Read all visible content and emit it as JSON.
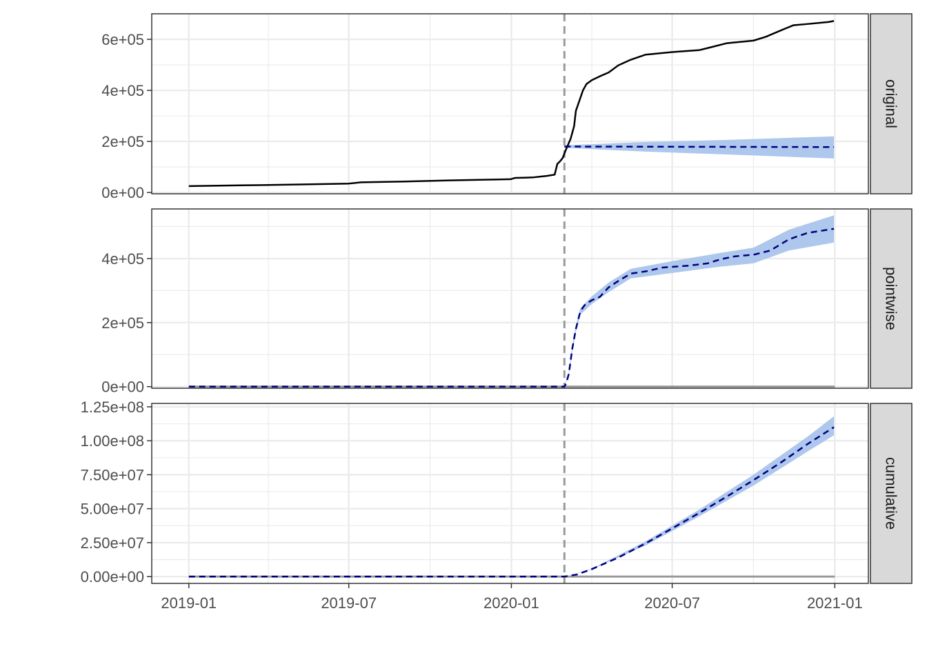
{
  "chart_data": {
    "type": "line",
    "title": "",
    "xlabel": "",
    "ylabel": "",
    "intervention_date": "2020-03-01",
    "x_range": [
      "2018-11-20",
      "2021-02-08"
    ],
    "x_ticks": [
      {
        "date": "2019-01-01",
        "label": "2019-01"
      },
      {
        "date": "2019-07-01",
        "label": "2019-07"
      },
      {
        "date": "2020-01-01",
        "label": "2020-01"
      },
      {
        "date": "2020-07-01",
        "label": "2020-07"
      },
      {
        "date": "2021-01-01",
        "label": "2021-01"
      }
    ],
    "x_minor_ticks": [
      "2019-04-01",
      "2019-10-01",
      "2020-04-01",
      "2020-10-01"
    ],
    "grid": true,
    "colors": {
      "observed": "#000000",
      "prediction": "#000080",
      "band": "#aec7ec",
      "vline": "#999999",
      "zero_line": "#999999",
      "strip_bg": "#d9d9d9",
      "grid": "#ebebeb"
    },
    "panels": [
      {
        "strip": "original",
        "ylim": [
          -5000,
          700000
        ],
        "y_ticks": [
          {
            "v": 0,
            "label": "0e+00"
          },
          {
            "v": 200000,
            "label": "2e+05"
          },
          {
            "v": 400000,
            "label": "4e+05"
          },
          {
            "v": 600000,
            "label": "6e+05"
          }
        ],
        "y_minor": [
          100000,
          300000,
          500000
        ],
        "zero_line": false,
        "series": [
          {
            "role": "observed",
            "points": [
              [
                "2019-01-01",
                25000
              ],
              [
                "2019-03-01",
                28000
              ],
              [
                "2019-05-01",
                31000
              ],
              [
                "2019-07-01",
                35000
              ],
              [
                "2019-07-15",
                40000
              ],
              [
                "2019-09-01",
                43000
              ],
              [
                "2019-11-01",
                48000
              ],
              [
                "2019-12-31",
                52000
              ],
              [
                "2020-01-05",
                57000
              ],
              [
                "2020-01-25",
                59000
              ],
              [
                "2020-02-10",
                65000
              ],
              [
                "2020-02-19",
                70000
              ],
              [
                "2020-02-22",
                112000
              ],
              [
                "2020-02-25",
                122000
              ],
              [
                "2020-02-28",
                135000
              ],
              [
                "2020-03-03",
                170000
              ],
              [
                "2020-03-08",
                210000
              ],
              [
                "2020-03-12",
                260000
              ],
              [
                "2020-03-14",
                320000
              ],
              [
                "2020-03-18",
                360000
              ],
              [
                "2020-03-22",
                400000
              ],
              [
                "2020-03-26",
                425000
              ],
              [
                "2020-04-01",
                440000
              ],
              [
                "2020-04-10",
                455000
              ],
              [
                "2020-04-20",
                470000
              ],
              [
                "2020-05-01",
                498000
              ],
              [
                "2020-05-15",
                520000
              ],
              [
                "2020-06-01",
                540000
              ],
              [
                "2020-07-01",
                550000
              ],
              [
                "2020-08-01",
                558000
              ],
              [
                "2020-08-15",
                570000
              ],
              [
                "2020-09-01",
                585000
              ],
              [
                "2020-10-01",
                595000
              ],
              [
                "2020-10-15",
                610000
              ],
              [
                "2020-11-01",
                635000
              ],
              [
                "2020-11-15",
                655000
              ],
              [
                "2020-12-01",
                660000
              ],
              [
                "2020-12-25",
                668000
              ],
              [
                "2020-12-31",
                672000
              ]
            ]
          },
          {
            "role": "prediction",
            "points": [
              [
                "2020-03-01",
                180000
              ],
              [
                "2020-12-31",
                178000
              ]
            ]
          }
        ],
        "band": {
          "upper": [
            [
              "2020-03-01",
              185000
            ],
            [
              "2020-06-01",
              198000
            ],
            [
              "2020-09-01",
              206000
            ],
            [
              "2020-12-31",
              220000
            ]
          ],
          "lower": [
            [
              "2020-03-01",
              175000
            ],
            [
              "2020-06-01",
              160000
            ],
            [
              "2020-09-01",
              149000
            ],
            [
              "2020-12-31",
              133000
            ]
          ]
        }
      },
      {
        "strip": "pointwise",
        "ylim": [
          -5000,
          555000
        ],
        "y_ticks": [
          {
            "v": 0,
            "label": "0e+00"
          },
          {
            "v": 200000,
            "label": "2e+05"
          },
          {
            "v": 400000,
            "label": "4e+05"
          }
        ],
        "y_minor": [
          100000,
          300000,
          500000
        ],
        "zero_line": true,
        "series": [
          {
            "role": "prediction",
            "points": [
              [
                "2019-01-01",
                0
              ],
              [
                "2020-03-01",
                0
              ],
              [
                "2020-03-03",
                10000
              ],
              [
                "2020-03-06",
                40000
              ],
              [
                "2020-03-10",
                120000
              ],
              [
                "2020-03-14",
                180000
              ],
              [
                "2020-03-19",
                235000
              ],
              [
                "2020-03-24",
                255000
              ],
              [
                "2020-04-01",
                270000
              ],
              [
                "2020-04-10",
                280000
              ],
              [
                "2020-04-20",
                310000
              ],
              [
                "2020-05-01",
                330000
              ],
              [
                "2020-05-15",
                353000
              ],
              [
                "2020-06-01",
                360000
              ],
              [
                "2020-06-20",
                372000
              ],
              [
                "2020-07-05",
                375000
              ],
              [
                "2020-07-20",
                378000
              ],
              [
                "2020-08-10",
                385000
              ],
              [
                "2020-08-25",
                398000
              ],
              [
                "2020-09-10",
                407000
              ],
              [
                "2020-10-01",
                412000
              ],
              [
                "2020-10-20",
                425000
              ],
              [
                "2020-11-10",
                460000
              ],
              [
                "2020-12-01",
                480000
              ],
              [
                "2020-12-31",
                493000
              ]
            ]
          }
        ],
        "band": {
          "upper": [
            [
              "2020-03-01",
              2000
            ],
            [
              "2020-03-06",
              45000
            ],
            [
              "2020-03-10",
              130000
            ],
            [
              "2020-03-14",
              190000
            ],
            [
              "2020-03-19",
              245000
            ],
            [
              "2020-04-01",
              282000
            ],
            [
              "2020-04-20",
              325000
            ],
            [
              "2020-05-15",
              368000
            ],
            [
              "2020-07-01",
              392000
            ],
            [
              "2020-08-25",
              418000
            ],
            [
              "2020-10-01",
              434000
            ],
            [
              "2020-11-10",
              490000
            ],
            [
              "2020-12-31",
              535000
            ]
          ],
          "lower": [
            [
              "2020-03-01",
              0
            ],
            [
              "2020-03-06",
              35000
            ],
            [
              "2020-03-10",
              110000
            ],
            [
              "2020-03-14",
              170000
            ],
            [
              "2020-03-19",
              225000
            ],
            [
              "2020-04-01",
              258000
            ],
            [
              "2020-04-20",
              295000
            ],
            [
              "2020-05-15",
              338000
            ],
            [
              "2020-07-01",
              355000
            ],
            [
              "2020-08-25",
              375000
            ],
            [
              "2020-10-01",
              385000
            ],
            [
              "2020-11-10",
              425000
            ],
            [
              "2020-12-31",
              450000
            ]
          ]
        }
      },
      {
        "strip": "cumulative",
        "ylim": [
          -5000000,
          127500000
        ],
        "y_ticks": [
          {
            "v": 0,
            "label": "0.00e+00"
          },
          {
            "v": 25000000,
            "label": "2.50e+07"
          },
          {
            "v": 50000000,
            "label": "5.00e+07"
          },
          {
            "v": 75000000,
            "label": "7.50e+07"
          },
          {
            "v": 100000000,
            "label": "1.00e+08"
          },
          {
            "v": 125000000,
            "label": "1.25e+08"
          }
        ],
        "y_minor": [
          12500000,
          37500000,
          62500000,
          87500000,
          112500000
        ],
        "zero_line": true,
        "series": [
          {
            "role": "prediction",
            "points": [
              [
                "2019-01-01",
                0
              ],
              [
                "2020-03-01",
                0
              ],
              [
                "2020-03-15",
                1500000
              ],
              [
                "2020-04-01",
                5500000
              ],
              [
                "2020-05-01",
                14000000
              ],
              [
                "2020-06-01",
                24500000
              ],
              [
                "2020-07-01",
                35500000
              ],
              [
                "2020-08-01",
                47000000
              ],
              [
                "2020-09-01",
                59000000
              ],
              [
                "2020-10-01",
                71000000
              ],
              [
                "2020-11-01",
                84000000
              ],
              [
                "2020-12-01",
                97500000
              ],
              [
                "2020-12-31",
                110000000
              ]
            ]
          }
        ],
        "band": {
          "upper": [
            [
              "2020-03-01",
              0
            ],
            [
              "2020-04-01",
              5800000
            ],
            [
              "2020-06-01",
              26000000
            ],
            [
              "2020-08-01",
              49500000
            ],
            [
              "2020-10-01",
              75000000
            ],
            [
              "2020-12-01",
              103000000
            ],
            [
              "2020-12-31",
              118000000
            ]
          ],
          "lower": [
            [
              "2020-03-01",
              0
            ],
            [
              "2020-04-01",
              5200000
            ],
            [
              "2020-06-01",
              23000000
            ],
            [
              "2020-08-01",
              44500000
            ],
            [
              "2020-10-01",
              67000000
            ],
            [
              "2020-12-01",
              92000000
            ],
            [
              "2020-12-31",
              104000000
            ]
          ]
        }
      }
    ]
  }
}
